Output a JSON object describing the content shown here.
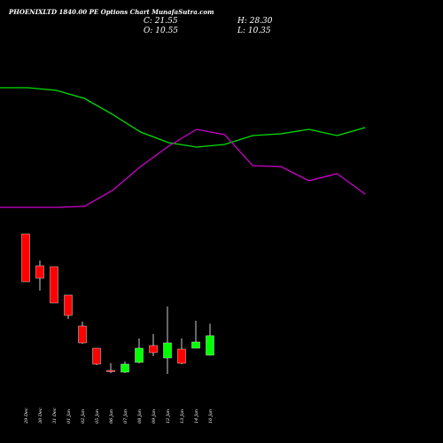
{
  "header": {
    "title": "PHOENIXLTD 1840.00  PE Options  Chart MunafaSutra.com",
    "close_label": "C: 21.55",
    "open_label": "O: 10.55",
    "high_label": "H: 28.30",
    "low_label": "L: 10.35"
  },
  "colors": {
    "background": "#000000",
    "up": "#00ff00",
    "down": "#ff0000",
    "line_green": "#00e000",
    "line_magenta": "#cc00cc",
    "wick": "#ffffff",
    "text": "#ffffff"
  },
  "chart_data": {
    "type": "candlestick",
    "x": [
      "29 Dec",
      "30 Dec",
      "31 Dec",
      "01 Jan",
      "02 Jan",
      "05 Jan",
      "06 Jan",
      "07 Jan",
      "08 Jan",
      "09 Jan",
      "12 Jan",
      "13 Jan",
      "14 Jan",
      "16 Jan"
    ],
    "candles": [
      {
        "open": 79.0,
        "high": 79.0,
        "low": 52.0,
        "close": 52.0
      },
      {
        "open": 61.0,
        "high": 64.0,
        "low": 47.0,
        "close": 54.0
      },
      {
        "open": 60.5,
        "high": 60.5,
        "low": 40.0,
        "close": 40.0
      },
      {
        "open": 44.5,
        "high": 44.5,
        "low": 31.0,
        "close": 33.0
      },
      {
        "open": 27.0,
        "high": 29.5,
        "low": 17.0,
        "close": 17.5
      },
      {
        "open": 14.5,
        "high": 14.5,
        "low": 5.0,
        "close": 5.5
      },
      {
        "open": 2.0,
        "high": 6.0,
        "low": 0.5,
        "close": 1.5
      },
      {
        "open": 1.0,
        "high": 7.0,
        "low": 0.5,
        "close": 5.5
      },
      {
        "open": 6.5,
        "high": 20.0,
        "low": 6.0,
        "close": 14.5
      },
      {
        "open": 16.0,
        "high": 22.5,
        "low": 10.0,
        "close": 12.0
      },
      {
        "open": 9.0,
        "high": 38.0,
        "low": 0.0,
        "close": 17.5
      },
      {
        "open": 14.0,
        "high": 20.0,
        "low": 5.5,
        "close": 6.0
      },
      {
        "open": 14.5,
        "high": 30.0,
        "low": 14.5,
        "close": 18.0
      },
      {
        "open": 10.55,
        "high": 28.3,
        "low": 10.35,
        "close": 21.55
      }
    ],
    "ylim": [
      -2,
      82
    ],
    "overlays": [
      {
        "color": "#00e000",
        "values": [
          99,
          99,
          102,
          111,
          129,
          149,
          161,
          166,
          163,
          153,
          151,
          146,
          153,
          144
        ]
      },
      {
        "color": "#cc00cc",
        "values": [
          234,
          234,
          234,
          233,
          215,
          188,
          165,
          146,
          152,
          187,
          188,
          204,
          196,
          219
        ]
      }
    ],
    "overlay_ylim": [
      0,
      500
    ]
  }
}
